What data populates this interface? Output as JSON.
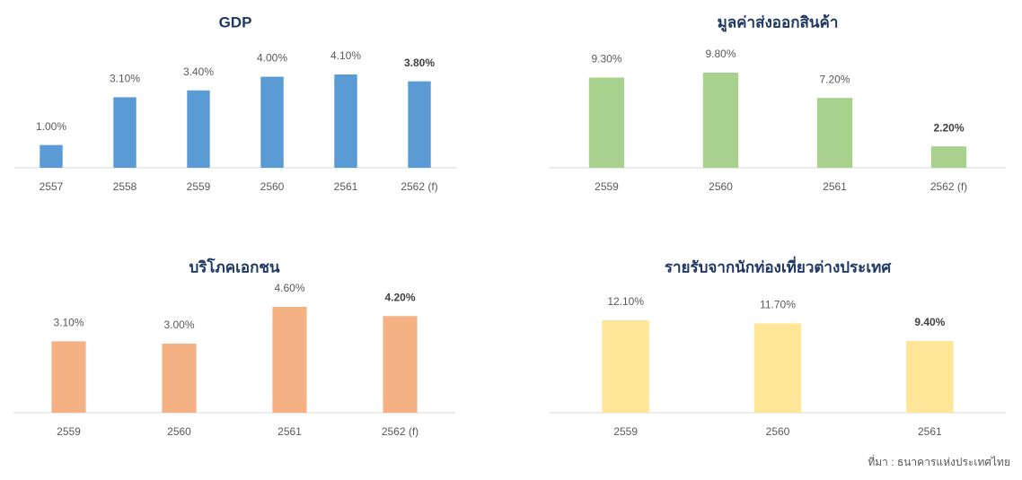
{
  "chart_data": [
    {
      "type": "bar",
      "title": "GDP",
      "categories": [
        "2557",
        "2558",
        "2559",
        "2560",
        "2561",
        "2562 (f)"
      ],
      "values": [
        1.0,
        3.1,
        3.4,
        4.0,
        4.1,
        3.8
      ],
      "value_labels": [
        "1.00%",
        "3.10%",
        "3.40%",
        "4.00%",
        "4.10%",
        "3.80%"
      ],
      "color": "#5b9bd5"
    },
    {
      "type": "bar",
      "title": "มูลค่าส่งออกสินค้า",
      "categories": [
        "2559",
        "2560",
        "2561",
        "2562 (f)"
      ],
      "values": [
        9.3,
        9.8,
        7.2,
        2.2
      ],
      "value_labels": [
        "9.30%",
        "9.80%",
        "7.20%",
        "2.20%"
      ],
      "color": "#a9d18e"
    },
    {
      "type": "bar",
      "title": "บริโภคเอกชน",
      "categories": [
        "2559",
        "2560",
        "2561",
        "2562 (f)"
      ],
      "values": [
        3.1,
        3.0,
        4.6,
        4.2
      ],
      "value_labels": [
        "3.10%",
        "3.00%",
        "4.60%",
        "4.20%"
      ],
      "color": "#f4b183"
    },
    {
      "type": "bar",
      "title": "รายรับจากนักท่องเที่ยวต่างประเทศ",
      "categories": [
        "2559",
        "2560",
        "2561"
      ],
      "values": [
        12.1,
        11.7,
        9.4
      ],
      "value_labels": [
        "12.10%",
        "11.70%",
        "9.40%"
      ],
      "color": "#ffe699"
    }
  ],
  "source": "ที่มา : ธนาคารแห่งประเทศไทย"
}
